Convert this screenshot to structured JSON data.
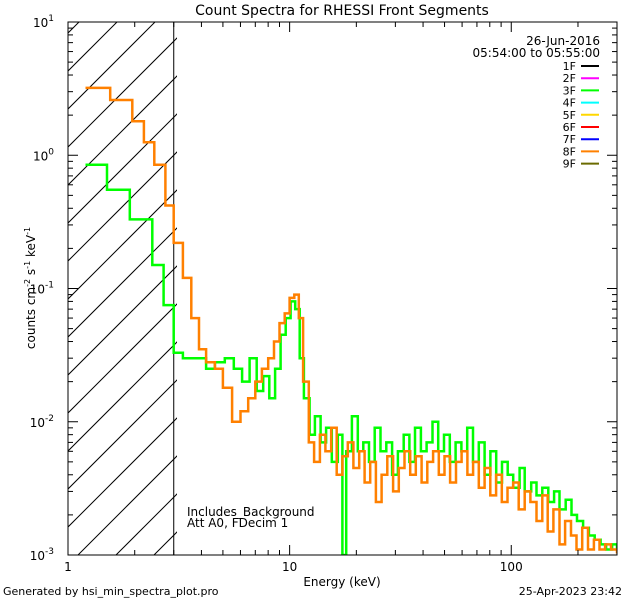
{
  "chart_data": {
    "type": "line",
    "title": "Count Spectra for RHESSI Front Segments",
    "xlabel": "Energy (keV)",
    "ylabel_base": "counts cm",
    "ylabel_sup1": "-2",
    "ylabel_mid": " s",
    "ylabel_sup2": "-1",
    "ylabel_end": " keV",
    "ylabel_sup3": "-1",
    "xscale": "log",
    "yscale": "log",
    "xlim": [
      1,
      300
    ],
    "ylim": [
      0.001,
      10
    ],
    "x_ticks": [
      {
        "value": 1,
        "label": "1"
      },
      {
        "value": 10,
        "label": "10"
      },
      {
        "value": 100,
        "label": "100"
      }
    ],
    "y_ticks": [
      {
        "value": 10,
        "base": "10",
        "exp": "1"
      },
      {
        "value": 1,
        "base": "10",
        "exp": "0"
      },
      {
        "value": 0.1,
        "base": "10",
        "exp": "-1"
      },
      {
        "value": 0.01,
        "base": "10",
        "exp": "-2"
      },
      {
        "value": 0.001,
        "base": "10",
        "exp": "-3"
      }
    ],
    "shaded_region": {
      "x_from": 1,
      "x_to": 3,
      "style": "diagonal-hatch"
    },
    "date": "26-Jun-2016",
    "time_range": "05:54:00 to 05:55:00",
    "legend": [
      {
        "label": "1F",
        "color": "#000000"
      },
      {
        "label": "2F",
        "color": "#ff00ff"
      },
      {
        "label": "3F",
        "color": "#00ff00"
      },
      {
        "label": "4F",
        "color": "#00ffff"
      },
      {
        "label": "5F",
        "color": "#ffd700"
      },
      {
        "label": "6F",
        "color": "#ff0000"
      },
      {
        "label": "7F",
        "color": "#0000ff"
      },
      {
        "label": "8F",
        "color": "#ff8000"
      },
      {
        "label": "9F",
        "color": "#6b6b00"
      }
    ],
    "annotations": [
      "Includes_Background",
      "Att A0, FDecim 1"
    ],
    "series": [
      {
        "name": "3F",
        "color": "#00ff00",
        "points": [
          [
            1.2,
            0.85
          ],
          [
            1.35,
            0.85
          ],
          [
            1.5,
            0.55
          ],
          [
            1.7,
            0.55
          ],
          [
            1.9,
            0.33
          ],
          [
            2.15,
            0.33
          ],
          [
            2.4,
            0.15
          ],
          [
            2.7,
            0.075
          ],
          [
            3.0,
            0.033
          ],
          [
            3.3,
            0.03
          ],
          [
            3.7,
            0.03
          ],
          [
            4.2,
            0.025
          ],
          [
            4.6,
            0.028
          ],
          [
            5.1,
            0.03
          ],
          [
            5.6,
            0.025
          ],
          [
            6.1,
            0.02
          ],
          [
            6.6,
            0.03
          ],
          [
            7.1,
            0.017
          ],
          [
            7.6,
            0.022
          ],
          [
            8.1,
            0.015
          ],
          [
            8.6,
            0.025
          ],
          [
            9.1,
            0.045
          ],
          [
            9.6,
            0.06
          ],
          [
            10.1,
            0.08
          ],
          [
            10.6,
            0.07
          ],
          [
            11.1,
            0.03
          ],
          [
            11.6,
            0.015
          ],
          [
            12.3,
            0.008
          ],
          [
            13.0,
            0.011
          ],
          [
            13.8,
            0.007
          ],
          [
            14.6,
            0.009
          ],
          [
            15.5,
            0.005
          ],
          [
            16.5,
            0.008
          ],
          [
            17.3,
            0.001
          ],
          [
            18.0,
            0.006
          ],
          [
            19.1,
            0.011
          ],
          [
            20.3,
            0.006
          ],
          [
            21.5,
            0.007
          ],
          [
            22.8,
            0.005
          ],
          [
            24.2,
            0.009
          ],
          [
            25.7,
            0.006
          ],
          [
            27.3,
            0.007
          ],
          [
            29.0,
            0.004
          ],
          [
            30.8,
            0.006
          ],
          [
            32.7,
            0.008
          ],
          [
            34.7,
            0.005
          ],
          [
            36.8,
            0.009
          ],
          [
            39.1,
            0.006
          ],
          [
            41.5,
            0.007
          ],
          [
            44.1,
            0.01
          ],
          [
            46.8,
            0.006
          ],
          [
            49.7,
            0.008
          ],
          [
            52.8,
            0.005
          ],
          [
            56.1,
            0.007
          ],
          [
            59.6,
            0.006
          ],
          [
            63.3,
            0.009
          ],
          [
            67.2,
            0.005
          ],
          [
            71.4,
            0.007
          ],
          [
            75.8,
            0.004
          ],
          [
            80.5,
            0.006
          ],
          [
            85.5,
            0.0035
          ],
          [
            90.8,
            0.005
          ],
          [
            96.4,
            0.004
          ],
          [
            102,
            0.0032
          ],
          [
            109,
            0.0045
          ],
          [
            115,
            0.003
          ],
          [
            123,
            0.0035
          ],
          [
            130,
            0.0028
          ],
          [
            138,
            0.0032
          ],
          [
            147,
            0.0025
          ],
          [
            156,
            0.003
          ],
          [
            165,
            0.0022
          ],
          [
            176,
            0.0026
          ],
          [
            187,
            0.002
          ],
          [
            198,
            0.0018
          ],
          [
            211,
            0.0016
          ],
          [
            224,
            0.0014
          ],
          [
            238,
            0.0013
          ],
          [
            253,
            0.0012
          ],
          [
            268,
            0.0011
          ],
          [
            285,
            0.0012
          ],
          [
            300,
            0.0011
          ]
        ]
      },
      {
        "name": "8F",
        "color": "#ff8000",
        "points": [
          [
            1.2,
            3.2
          ],
          [
            1.4,
            3.2
          ],
          [
            1.55,
            2.6
          ],
          [
            1.75,
            2.6
          ],
          [
            1.95,
            1.8
          ],
          [
            2.2,
            1.25
          ],
          [
            2.45,
            0.85
          ],
          [
            2.75,
            0.42
          ],
          [
            3.0,
            0.22
          ],
          [
            3.3,
            0.12
          ],
          [
            3.6,
            0.06
          ],
          [
            3.9,
            0.035
          ],
          [
            4.2,
            0.028
          ],
          [
            4.6,
            0.025
          ],
          [
            5.0,
            0.018
          ],
          [
            5.5,
            0.01
          ],
          [
            6.0,
            0.012
          ],
          [
            6.5,
            0.015
          ],
          [
            7.0,
            0.02
          ],
          [
            7.5,
            0.025
          ],
          [
            8.0,
            0.03
          ],
          [
            8.5,
            0.04
          ],
          [
            9.0,
            0.055
          ],
          [
            9.5,
            0.065
          ],
          [
            10.0,
            0.085
          ],
          [
            10.5,
            0.09
          ],
          [
            11.0,
            0.06
          ],
          [
            11.5,
            0.02
          ],
          [
            12.2,
            0.007
          ],
          [
            12.9,
            0.005
          ],
          [
            13.7,
            0.008
          ],
          [
            14.5,
            0.006
          ],
          [
            15.4,
            0.009
          ],
          [
            16.3,
            0.004
          ],
          [
            17.3,
            0.0055
          ],
          [
            18.3,
            0.007
          ],
          [
            19.4,
            0.0045
          ],
          [
            20.6,
            0.006
          ],
          [
            21.8,
            0.0035
          ],
          [
            23.1,
            0.005
          ],
          [
            24.5,
            0.0025
          ],
          [
            26.0,
            0.004
          ],
          [
            27.6,
            0.0055
          ],
          [
            29.3,
            0.003
          ],
          [
            31.1,
            0.0045
          ],
          [
            33.0,
            0.006
          ],
          [
            35.0,
            0.004
          ],
          [
            37.1,
            0.0055
          ],
          [
            39.4,
            0.0035
          ],
          [
            41.8,
            0.005
          ],
          [
            44.4,
            0.006
          ],
          [
            47.1,
            0.004
          ],
          [
            50.0,
            0.0055
          ],
          [
            53.0,
            0.0035
          ],
          [
            56.3,
            0.005
          ],
          [
            59.7,
            0.006
          ],
          [
            63.4,
            0.004
          ],
          [
            67.3,
            0.005
          ],
          [
            71.4,
            0.0032
          ],
          [
            75.8,
            0.0045
          ],
          [
            80.4,
            0.0028
          ],
          [
            85.4,
            0.004
          ],
          [
            90.6,
            0.0025
          ],
          [
            96.2,
            0.0032
          ],
          [
            102,
            0.0035
          ],
          [
            108,
            0.0022
          ],
          [
            115,
            0.003
          ],
          [
            122,
            0.0025
          ],
          [
            130,
            0.0018
          ],
          [
            138,
            0.0028
          ],
          [
            146,
            0.0015
          ],
          [
            155,
            0.0022
          ],
          [
            165,
            0.0012
          ],
          [
            175,
            0.0018
          ],
          [
            186,
            0.0014
          ],
          [
            197,
            0.0011
          ],
          [
            209,
            0.0016
          ],
          [
            222,
            0.0011
          ],
          [
            236,
            0.0013
          ],
          [
            250,
            0.0011
          ],
          [
            265,
            0.0012
          ],
          [
            282,
            0.0011
          ],
          [
            300,
            0.00105
          ]
        ]
      }
    ]
  },
  "footer": {
    "generated_by": "Generated by hsi_min_spectra_plot.pro",
    "timestamp": "25-Apr-2023 23:42"
  }
}
